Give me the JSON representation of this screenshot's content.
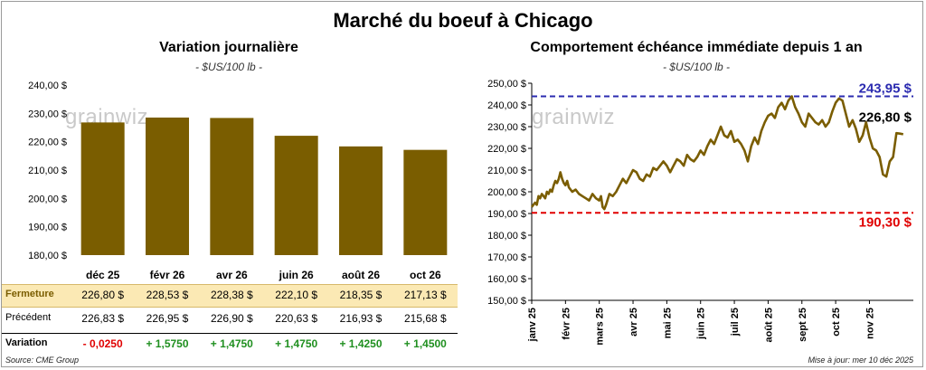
{
  "title": "Marché du boeuf à Chicago",
  "left": {
    "subtitle": "Variation journalière",
    "unit": "- $US/100 lb -",
    "watermark": "grainwiz",
    "row_labels": {
      "close": "Fermeture",
      "previous": "Précédent",
      "change": "Variation"
    },
    "colors": {
      "bar": "#7a5d00",
      "close_row": "#fbe9b4",
      "negative": "#e00000",
      "positive": "#1f8f1f"
    }
  },
  "right": {
    "subtitle": "Comportement échéance immédiate depuis 1 an",
    "unit": "- $US/100 lb -",
    "watermark": "grainwiz",
    "colors": {
      "line": "#7a5d00",
      "high": "#2b2bb0",
      "low": "#e00000"
    }
  },
  "footer": {
    "source": "Source: CME Group",
    "updated": "Mise à jour: mer 10 déc 2025"
  },
  "chart_data": [
    {
      "type": "bar",
      "title": "Variation journalière",
      "subtitle": "- $US/100 lb -",
      "categories": [
        "déc 25",
        "févr 26",
        "avr 26",
        "juin 26",
        "août 26",
        "oct 26"
      ],
      "values": [
        226.8,
        228.53,
        228.38,
        222.1,
        218.35,
        217.13
      ],
      "close_labels": [
        "226,80 $",
        "228,53 $",
        "228,38 $",
        "222,10 $",
        "218,35 $",
        "217,13 $"
      ],
      "previous_labels": [
        "226,83 $",
        "226,95 $",
        "226,90 $",
        "220,63 $",
        "216,93 $",
        "215,68 $"
      ],
      "change_labels": [
        "- 0,0250",
        "+ 1,5750",
        "+ 1,4750",
        "+ 1,4750",
        "+ 1,4250",
        "+ 1,4500"
      ],
      "change_sign": [
        -1,
        1,
        1,
        1,
        1,
        1
      ],
      "ylim": [
        180,
        240
      ],
      "yticks": [
        180,
        190,
        200,
        210,
        220,
        230,
        240
      ],
      "ytick_labels": [
        "180,00 $",
        "190,00 $",
        "200,00 $",
        "210,00 $",
        "220,00 $",
        "230,00 $",
        "240,00 $"
      ],
      "grid": false
    },
    {
      "type": "line",
      "title": "Comportement échéance immédiate depuis 1 an",
      "subtitle": "- $US/100 lb -",
      "x_labels": [
        "janv 25",
        "févr 25",
        "mars 25",
        "avr 25",
        "mai 25",
        "juin 25",
        "juil 25",
        "août 25",
        "sept 25",
        "oct 25",
        "nov 25"
      ],
      "x_month_index": [
        0,
        1,
        2,
        3,
        4,
        5,
        6,
        7,
        8,
        9,
        10
      ],
      "xlim": [
        0,
        11.3
      ],
      "ylim": [
        150,
        250
      ],
      "yticks": [
        150,
        160,
        170,
        180,
        190,
        200,
        210,
        220,
        230,
        240,
        250
      ],
      "ytick_labels": [
        "150,00 $",
        "160,00 $",
        "170,00 $",
        "180,00 $",
        "190,00 $",
        "200,00 $",
        "210,00 $",
        "220,00 $",
        "230,00 $",
        "240,00 $",
        "250,00 $"
      ],
      "series_x": [
        0,
        0.1,
        0.15,
        0.2,
        0.25,
        0.3,
        0.35,
        0.4,
        0.45,
        0.5,
        0.55,
        0.6,
        0.65,
        0.7,
        0.75,
        0.8,
        0.85,
        0.9,
        0.95,
        1.0,
        1.05,
        1.1,
        1.2,
        1.3,
        1.4,
        1.5,
        1.6,
        1.7,
        1.8,
        1.9,
        2.0,
        2.05,
        2.1,
        2.15,
        2.2,
        2.3,
        2.4,
        2.5,
        2.6,
        2.7,
        2.8,
        2.9,
        3.0,
        3.1,
        3.2,
        3.3,
        3.4,
        3.5,
        3.6,
        3.7,
        3.8,
        3.9,
        4.0,
        4.1,
        4.2,
        4.3,
        4.4,
        4.5,
        4.6,
        4.7,
        4.8,
        4.9,
        5.0,
        5.1,
        5.2,
        5.3,
        5.4,
        5.5,
        5.6,
        5.7,
        5.8,
        5.9,
        6.0,
        6.1,
        6.2,
        6.3,
        6.4,
        6.5,
        6.6,
        6.7,
        6.8,
        6.9,
        7.0,
        7.1,
        7.2,
        7.3,
        7.4,
        7.5,
        7.6,
        7.7,
        7.8,
        7.9,
        8.0,
        8.1,
        8.2,
        8.3,
        8.4,
        8.5,
        8.6,
        8.7,
        8.8,
        8.9,
        9.0,
        9.1,
        9.2,
        9.3,
        9.4,
        9.5,
        9.6,
        9.7,
        9.8,
        9.9,
        10.0,
        10.1,
        10.2,
        10.3,
        10.4,
        10.5,
        10.6,
        10.7,
        10.8,
        10.9,
        11.0,
        11.1,
        11.2
      ],
      "series_y": [
        193,
        195,
        194,
        198,
        197,
        199,
        198,
        197,
        200,
        199,
        201,
        200,
        203,
        205,
        204,
        206,
        209,
        206,
        204,
        203,
        205,
        202,
        200,
        201,
        199,
        198,
        197,
        196,
        199,
        197,
        196,
        198,
        193,
        192,
        194,
        199,
        198,
        200,
        203,
        206,
        204,
        207,
        210,
        209,
        206,
        205,
        208,
        207,
        211,
        210,
        212,
        214,
        212,
        209,
        212,
        215,
        214,
        212,
        217,
        215,
        214,
        216,
        219,
        217,
        221,
        224,
        222,
        226,
        230,
        226,
        225,
        228,
        223,
        224,
        222,
        219,
        214,
        221,
        225,
        222,
        228,
        232,
        235,
        236,
        234,
        239,
        241,
        238,
        242,
        243.95,
        239,
        236,
        232,
        230,
        236,
        234,
        232,
        231,
        233,
        230,
        232,
        237,
        241,
        243,
        242,
        236,
        230,
        233,
        229,
        223,
        226,
        232,
        225,
        220,
        219,
        216,
        208,
        207,
        214,
        216,
        227,
        226.8,
        226.5
      ],
      "reference_lines": [
        {
          "label": "243,95 $",
          "value": 243.95
        },
        {
          "label": "190,30 $",
          "value": 190.3
        }
      ],
      "last_value_label": "226,80 $",
      "grid": false
    }
  ]
}
